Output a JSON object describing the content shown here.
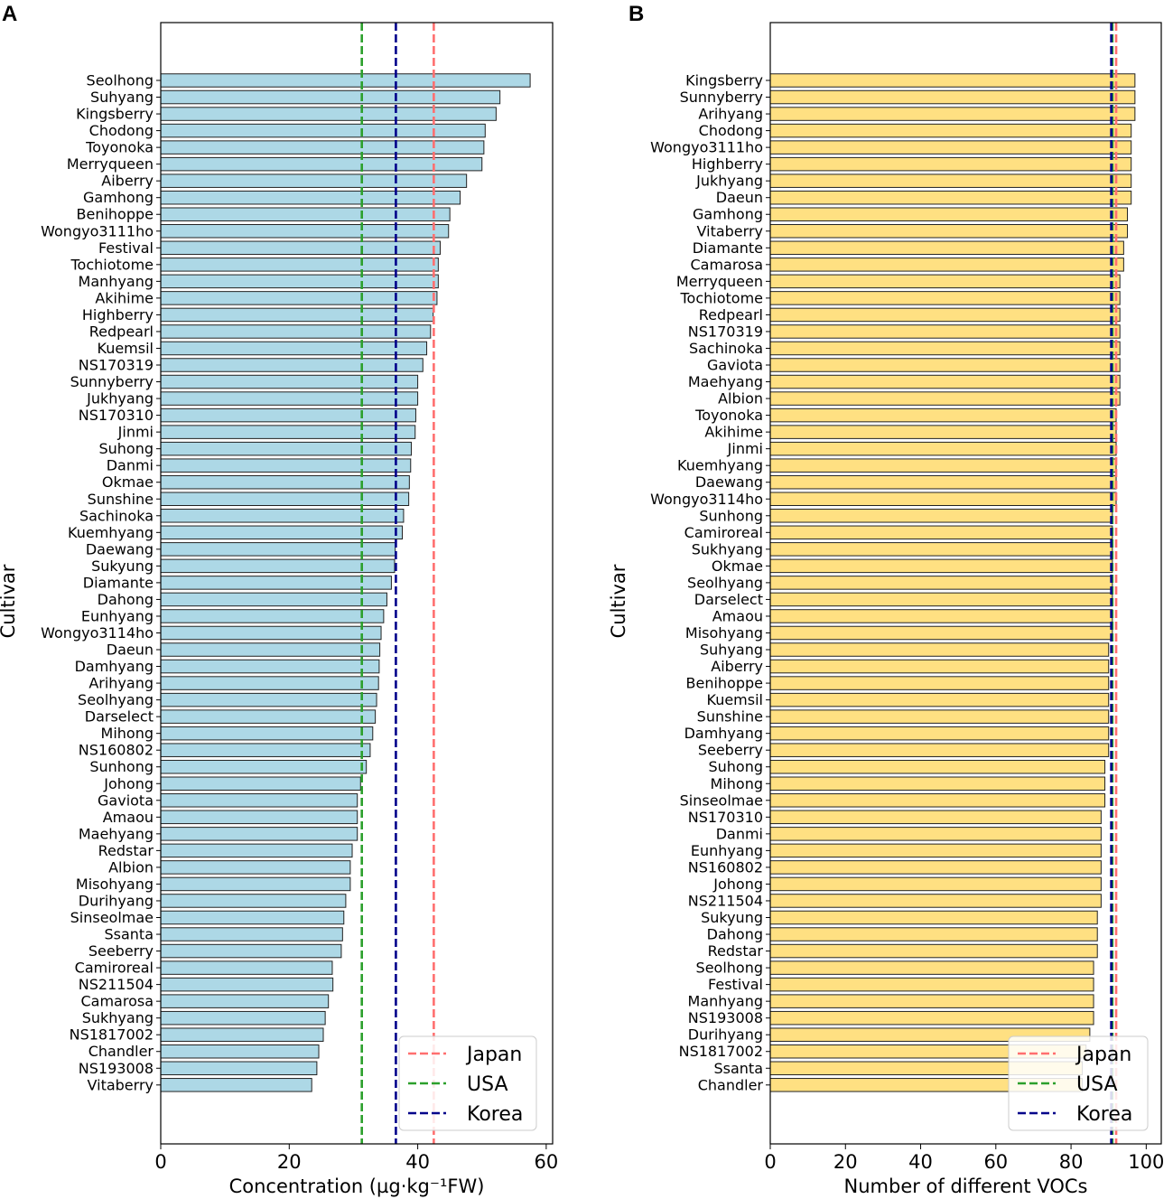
{
  "chart_data": [
    {
      "panel": "A",
      "type": "bar",
      "orientation": "horizontal",
      "xlabel": "Concentration (µg·kg⁻¹FW)",
      "ylabel": "Cultivar",
      "xlim": [
        0,
        61
      ],
      "xticks": [
        0,
        20,
        40,
        60
      ],
      "bar_color": "#add8e6",
      "categories": [
        "Seolhong",
        "Suhyang",
        "Kingsberry",
        "Chodong",
        "Toyonoka",
        "Merryqueen",
        "Aiberry",
        "Gamhong",
        "Benihoppe",
        "Wongyo3111ho",
        "Festival",
        "Tochiotome",
        "Manhyang",
        "Akihime",
        "Highberry",
        "Redpearl",
        "Kuemsil",
        "NS170319",
        "Sunnyberry",
        "Jukhyang",
        "NS170310",
        "Jinmi",
        "Suhong",
        "Danmi",
        "Okmae",
        "Sunshine",
        "Sachinoka",
        "Kuemhyang",
        "Daewang",
        "Sukyung",
        "Diamante",
        "Dahong",
        "Eunhyang",
        "Wongyo3114ho",
        "Daeun",
        "Damhyang",
        "Arihyang",
        "Seolhyang",
        "Darselect",
        "Mihong",
        "NS160802",
        "Sunhong",
        "Johong",
        "Gaviota",
        "Amaou",
        "Maehyang",
        "Redstar",
        "Albion",
        "Misohyang",
        "Durihyang",
        "Sinseolmae",
        "Ssanta",
        "Seeberry",
        "Camiroreal",
        "NS211504",
        "Camarosa",
        "Sukhyang",
        "NS1817002",
        "Chandler",
        "NS193008",
        "Vitaberry"
      ],
      "values": [
        57.5,
        52.8,
        52.2,
        50.5,
        50.3,
        50.0,
        47.6,
        46.6,
        45.0,
        44.8,
        43.5,
        43.2,
        43.2,
        43.0,
        42.4,
        42.0,
        41.4,
        40.8,
        40.0,
        40.0,
        39.7,
        39.6,
        39.0,
        38.9,
        38.7,
        38.6,
        37.8,
        37.6,
        36.5,
        36.4,
        35.9,
        35.2,
        34.7,
        34.3,
        34.1,
        34.0,
        33.9,
        33.6,
        33.4,
        33.0,
        32.6,
        32.0,
        31.1,
        30.6,
        30.6,
        30.6,
        29.8,
        29.5,
        29.5,
        28.8,
        28.5,
        28.3,
        28.1,
        26.7,
        26.8,
        26.1,
        25.6,
        25.3,
        24.6,
        24.3,
        23.5
      ],
      "reference_lines": [
        {
          "name": "Japan",
          "value": 42.5,
          "color": "#ff6f6f"
        },
        {
          "name": "USA",
          "value": 31.3,
          "color": "#2ca02c"
        },
        {
          "name": "Korea",
          "value": 36.6,
          "color": "#00008b"
        }
      ]
    },
    {
      "panel": "B",
      "type": "bar",
      "orientation": "horizontal",
      "xlabel": "Number of different VOCs",
      "ylabel": "Cultivar",
      "xlim": [
        0,
        104
      ],
      "xticks": [
        0,
        20,
        40,
        60,
        80,
        100
      ],
      "bar_color": "#ffe082",
      "categories": [
        "Kingsberry",
        "Sunnyberry",
        "Arihyang",
        "Chodong",
        "Wongyo3111ho",
        "Highberry",
        "Jukhyang",
        "Daeun",
        "Gamhong",
        "Vitaberry",
        "Diamante",
        "Camarosa",
        "Merryqueen",
        "Tochiotome",
        "Redpearl",
        "NS170319",
        "Sachinoka",
        "Gaviota",
        "Maehyang",
        "Albion",
        "Toyonoka",
        "Akihime",
        "Jinmi",
        "Kuemhyang",
        "Daewang",
        "Wongyo3114ho",
        "Sunhong",
        "Camiroreal",
        "Sukhyang",
        "Okmae",
        "Seolhyang",
        "Darselect",
        "Amaou",
        "Misohyang",
        "Suhyang",
        "Aiberry",
        "Benihoppe",
        "Kuemsil",
        "Sunshine",
        "Damhyang",
        "Seeberry",
        "Suhong",
        "Mihong",
        "Sinseolmae",
        "NS170310",
        "Danmi",
        "Eunhyang",
        "NS160802",
        "Johong",
        "NS211504",
        "Sukyung",
        "Dahong",
        "Redstar",
        "Seolhong",
        "Festival",
        "Manhyang",
        "NS193008",
        "Durihyang",
        "NS1817002",
        "Ssanta",
        "Chandler"
      ],
      "values": [
        97,
        97,
        97,
        96,
        96,
        96,
        96,
        96,
        95,
        95,
        94,
        94,
        93,
        93,
        93,
        93,
        93,
        93,
        93,
        93,
        92,
        92,
        92,
        92,
        92,
        92,
        91,
        91,
        91,
        91,
        91,
        91,
        91,
        91,
        90,
        90,
        90,
        90,
        90,
        90,
        90,
        89,
        89,
        89,
        88,
        88,
        88,
        88,
        88,
        88,
        87,
        87,
        87,
        86,
        86,
        86,
        86,
        85,
        84,
        83,
        83
      ],
      "reference_lines": [
        {
          "name": "Japan",
          "value": 92.0,
          "color": "#ff6f6f"
        },
        {
          "name": "USA",
          "value": 91.0,
          "color": "#2ca02c"
        },
        {
          "name": "Korea",
          "value": 90.7,
          "color": "#00008b"
        }
      ]
    }
  ]
}
